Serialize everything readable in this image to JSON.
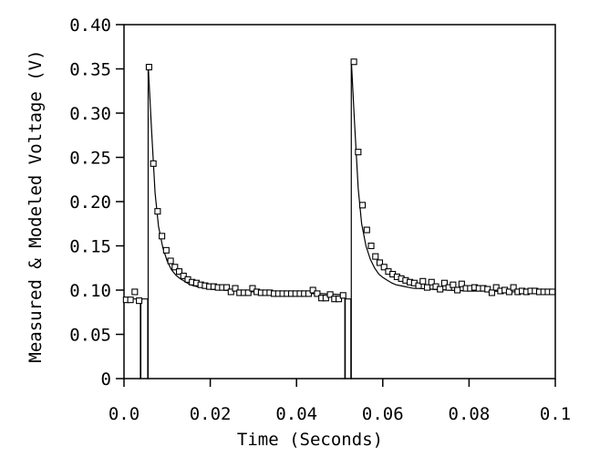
{
  "chart_data": {
    "type": "scatter",
    "title": "",
    "xlabel": "Time (Seconds)",
    "ylabel": "Measured & Modeled Voltage (V)",
    "xlim": [
      0,
      0.1
    ],
    "ylim": [
      0,
      0.4
    ],
    "xticks": [
      0,
      0.02,
      0.04,
      0.06,
      0.08,
      0.1
    ],
    "xtick_labels": [
      "0.0",
      "0.02",
      "0.04",
      "0.06",
      "0.08",
      "0.1"
    ],
    "yticks": [
      0,
      0.05,
      0.1,
      0.15,
      0.2,
      0.25,
      0.3,
      0.35,
      0.4
    ],
    "ytick_labels": [
      "0",
      "0.05",
      "0.10",
      "0.15",
      "0.20",
      "0.25",
      "0.30",
      "0.35",
      "0.40"
    ],
    "grid": false,
    "legend": "none",
    "series": [
      {
        "role": "measured",
        "marker": "square",
        "x": [
          0.0005,
          0.0015,
          0.0025,
          0.0035,
          0.0058,
          0.0068,
          0.0078,
          0.0088,
          0.0098,
          0.0108,
          0.0118,
          0.0128,
          0.0138,
          0.0148,
          0.0158,
          0.0168,
          0.0178,
          0.0188,
          0.0198,
          0.0208,
          0.0218,
          0.0228,
          0.0238,
          0.0248,
          0.0258,
          0.0268,
          0.0278,
          0.0288,
          0.0298,
          0.0308,
          0.0318,
          0.0328,
          0.0338,
          0.0348,
          0.0358,
          0.0368,
          0.0378,
          0.0388,
          0.0398,
          0.0408,
          0.0418,
          0.0428,
          0.0438,
          0.0448,
          0.0458,
          0.0468,
          0.0478,
          0.0488,
          0.0498,
          0.0508,
          0.0533,
          0.0543,
          0.0553,
          0.0563,
          0.0573,
          0.0583,
          0.0593,
          0.0603,
          0.0613,
          0.0623,
          0.0633,
          0.0643,
          0.0653,
          0.0663,
          0.0673,
          0.0683,
          0.0693,
          0.0703,
          0.0713,
          0.0723,
          0.0733,
          0.0743,
          0.0753,
          0.0763,
          0.0773,
          0.0783,
          0.0793,
          0.0803,
          0.0813,
          0.0823,
          0.0833,
          0.0843,
          0.0853,
          0.0863,
          0.0873,
          0.0883,
          0.0893,
          0.0903,
          0.0913,
          0.0923,
          0.0933,
          0.0943,
          0.0953,
          0.0963,
          0.0973,
          0.0983,
          0.0993
        ],
        "y": [
          0.089,
          0.089,
          0.098,
          0.088,
          0.352,
          0.243,
          0.189,
          0.161,
          0.145,
          0.133,
          0.126,
          0.121,
          0.116,
          0.112,
          0.109,
          0.108,
          0.106,
          0.105,
          0.104,
          0.104,
          0.103,
          0.103,
          0.103,
          0.098,
          0.102,
          0.097,
          0.097,
          0.097,
          0.102,
          0.098,
          0.097,
          0.097,
          0.097,
          0.096,
          0.096,
          0.096,
          0.096,
          0.096,
          0.096,
          0.096,
          0.096,
          0.096,
          0.1,
          0.096,
          0.091,
          0.091,
          0.095,
          0.09,
          0.09,
          0.094,
          0.358,
          0.256,
          0.196,
          0.168,
          0.15,
          0.138,
          0.131,
          0.126,
          0.121,
          0.118,
          0.115,
          0.113,
          0.111,
          0.109,
          0.108,
          0.105,
          0.11,
          0.103,
          0.109,
          0.104,
          0.101,
          0.108,
          0.103,
          0.106,
          0.1,
          0.107,
          0.102,
          0.102,
          0.103,
          0.102,
          0.102,
          0.101,
          0.097,
          0.103,
          0.099,
          0.1,
          0.098,
          0.103,
          0.098,
          0.099,
          0.098,
          0.099,
          0.099,
          0.098,
          0.098,
          0.098,
          0.098
        ]
      },
      {
        "role": "modeled",
        "marker": "line",
        "x": [
          0.0,
          0.0038,
          0.0038,
          0.0039,
          0.0039,
          0.0055,
          0.0055,
          0.0056,
          0.0056,
          0.0064,
          0.0072,
          0.008,
          0.009,
          0.01,
          0.011,
          0.012,
          0.013,
          0.014,
          0.015,
          0.016,
          0.017,
          0.018,
          0.019,
          0.02,
          0.023,
          0.026,
          0.03,
          0.034,
          0.038,
          0.042,
          0.046,
          0.05,
          0.0512,
          0.0512,
          0.0513,
          0.0513,
          0.0526,
          0.0526,
          0.0527,
          0.0527,
          0.0535,
          0.0543,
          0.0551,
          0.0561,
          0.0571,
          0.0581,
          0.0591,
          0.0601,
          0.0611,
          0.0621,
          0.0631,
          0.0641,
          0.0651,
          0.0661,
          0.0671,
          0.0681,
          0.0711,
          0.0751,
          0.0801,
          0.0851,
          0.0901,
          0.0951,
          0.1
        ],
        "y": [
          0.09,
          0.09,
          0.0,
          0.0,
          0.09,
          0.09,
          0.0,
          0.0,
          0.355,
          0.28,
          0.21,
          0.172,
          0.148,
          0.133,
          0.123,
          0.117,
          0.113,
          0.11,
          0.107,
          0.105,
          0.104,
          0.103,
          0.102,
          0.101,
          0.1,
          0.099,
          0.098,
          0.097,
          0.097,
          0.096,
          0.096,
          0.095,
          0.095,
          0.0,
          0.0,
          0.09,
          0.09,
          0.0,
          0.0,
          0.36,
          0.285,
          0.215,
          0.175,
          0.15,
          0.135,
          0.125,
          0.118,
          0.114,
          0.111,
          0.108,
          0.106,
          0.105,
          0.104,
          0.103,
          0.102,
          0.102,
          0.101,
          0.1,
          0.099,
          0.099,
          0.098,
          0.098,
          0.098
        ]
      }
    ]
  }
}
